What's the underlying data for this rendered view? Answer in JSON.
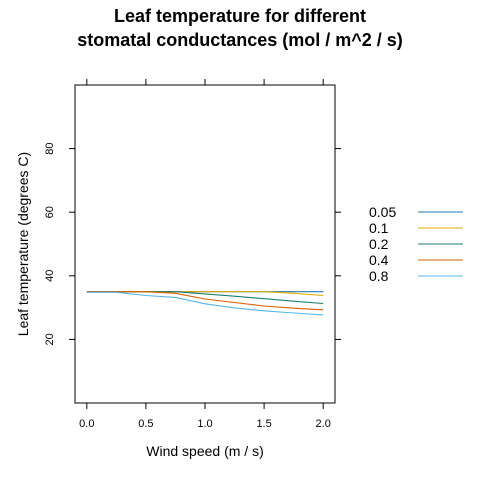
{
  "chart_data": {
    "type": "line",
    "title_lines": [
      "Leaf temperature for different",
      "stomatal conductances (mol / m^2 / s)"
    ],
    "xlabel": "Wind speed (m / s)",
    "ylabel": "Leaf temperature (degrees C)",
    "xlim": [
      -0.1,
      2.1
    ],
    "ylim": [
      0,
      100
    ],
    "xticks": [
      0.0,
      0.5,
      1.0,
      1.5,
      2.0
    ],
    "xtick_labels": [
      "0.0",
      "0.5",
      "1.0",
      "1.5",
      "2.0"
    ],
    "yticks": [
      20,
      40,
      60,
      80
    ],
    "ytick_labels": [
      "20",
      "40",
      "60",
      "80"
    ],
    "grid": false,
    "legend_position": "right",
    "x": [
      0.0,
      0.25,
      0.5,
      0.75,
      1.0,
      1.25,
      1.5,
      1.75,
      2.0
    ],
    "series": [
      {
        "name": "0.05",
        "color": "#1F78B4",
        "values": [
          35.0,
          35.0,
          35.0,
          35.0,
          35.0,
          35.0,
          35.0,
          35.0,
          35.0
        ]
      },
      {
        "name": "0.1",
        "color": "#E6AB02",
        "values": [
          35.0,
          35.0,
          35.0,
          35.0,
          35.0,
          35.0,
          35.0,
          34.5,
          33.8
        ]
      },
      {
        "name": "0.2",
        "color": "#1B7F6E",
        "values": [
          35.0,
          35.0,
          35.0,
          35.0,
          34.3,
          33.6,
          32.8,
          32.0,
          31.3
        ]
      },
      {
        "name": "0.4",
        "color": "#D95F02",
        "values": [
          35.0,
          35.0,
          35.0,
          34.5,
          32.7,
          31.6,
          30.5,
          29.8,
          29.3
        ]
      },
      {
        "name": "0.8",
        "color": "#56B4E9",
        "values": [
          34.8,
          34.8,
          33.8,
          33.2,
          31.2,
          29.9,
          29.0,
          28.3,
          27.7
        ]
      }
    ]
  }
}
